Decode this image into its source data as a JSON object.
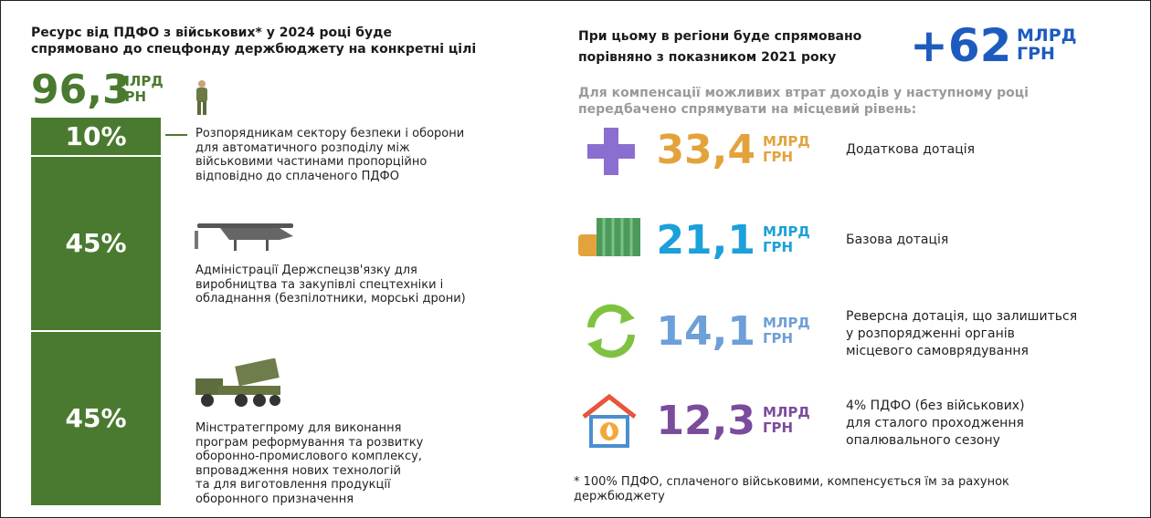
{
  "left": {
    "title": [
      "Ресурс від ПДФО з військових* у 2024 році буде",
      "спрямовано до спецфонду держбюджету на конкретні цілі"
    ],
    "total": {
      "value": "96,3",
      "unit": [
        "МЛРД",
        "ГРН"
      ]
    },
    "segments": [
      {
        "value": 10,
        "label": "10%",
        "text": [
          "Розпорядникам сектору безпеки і оборони",
          "для автоматичного розподілу між",
          "військовими частинами пропорційно",
          "відповідно до сплаченого ПДФО"
        ]
      },
      {
        "value": 45,
        "label": "45%",
        "text": [
          "Адміністрації Держспецзв'язку для",
          "виробництва та закупівлі спецтехніки і",
          "обладнання (безпілотники, морські дрони)"
        ]
      },
      {
        "value": 45,
        "label": "45%",
        "text": [
          "Мінстратегпрому для виконання",
          "програм реформування та розвитку",
          "оборонно-промислового комплексу,",
          "впровадження нових технологій",
          "та для виготовлення продукції",
          "оборонного призначення"
        ]
      }
    ]
  },
  "right": {
    "title": [
      "При цьому в регіони буде спрямовано",
      "порівняно з показником 2021 року"
    ],
    "total": {
      "value": "+62",
      "unit": [
        "МЛРД",
        "ГРН"
      ]
    },
    "subtitle": [
      "Для компенсації можливих втрат доходів у наступному році",
      "передбачено спрямувати на місцевий рівень:"
    ],
    "items": [
      {
        "value": "33,4",
        "unit": [
          "МЛРД",
          "ГРН"
        ],
        "color": "#e3a33c",
        "text": [
          "Додаткова дотація"
        ]
      },
      {
        "value": "21,1",
        "unit": [
          "МЛРД",
          "ГРН"
        ],
        "color": "#1ba0da",
        "text": [
          "Базова дотація"
        ]
      },
      {
        "value": "14,1",
        "unit": [
          "МЛРД",
          "ГРН"
        ],
        "color": "#6d9fd8",
        "text": [
          "Реверсна дотація, що залишиться",
          "у розпорядженні органів",
          "місцевого самоврядування"
        ]
      },
      {
        "value": "12,3",
        "unit": [
          "МЛРД",
          "ГРН"
        ],
        "color": "#7b4c9c",
        "text": [
          "4% ПДФО (без військових)",
          "для сталого проходження",
          "опалювального сезону"
        ]
      }
    ],
    "footnote": [
      "* 100% ПДФО, сплаченого військовими, компенсується їм за рахунок",
      "держбюджету"
    ]
  }
}
